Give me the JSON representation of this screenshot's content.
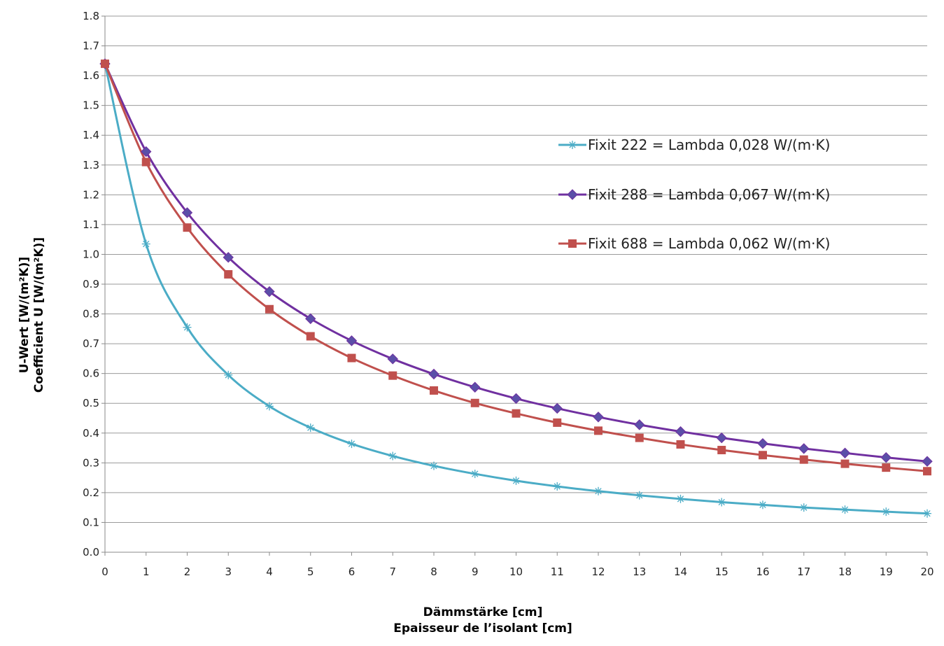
{
  "chart_data": {
    "type": "line",
    "xlabel": [
      "Dämmstärke [cm]",
      "Epaisseur de l’isolant [cm]"
    ],
    "ylabel": [
      "U-Wert [W/(m²K)]",
      "Coefficient U [W/(m²K)]"
    ],
    "xlim": [
      0,
      20
    ],
    "ylim": [
      0,
      1.8
    ],
    "x_ticks": [
      "0",
      "1",
      "2",
      "3",
      "4",
      "5",
      "6",
      "7",
      "8",
      "9",
      "10",
      "11",
      "12",
      "13",
      "14",
      "15",
      "16",
      "17",
      "18",
      "19",
      "20"
    ],
    "y_ticks": [
      "0.0",
      "0.1",
      "0.2",
      "0.3",
      "0.4",
      "0.5",
      "0.6",
      "0.7",
      "0.8",
      "0.9",
      "1.0",
      "1.1",
      "1.2",
      "1.3",
      "1.4",
      "1.5",
      "1.6",
      "1.7",
      "1.8"
    ],
    "grid": "horizontal",
    "legend_position": "right",
    "x": [
      0,
      1,
      2,
      3,
      4,
      5,
      6,
      7,
      8,
      9,
      10,
      11,
      12,
      13,
      14,
      15,
      16,
      17,
      18,
      19,
      20
    ],
    "series": [
      {
        "name": "Fixit 222 = Lambda 0,028 W/(m·K)",
        "color": "#4bacc6",
        "marker": "asterisk",
        "values": [
          1.64,
          1.035,
          0.755,
          0.595,
          0.49,
          0.418,
          0.364,
          0.323,
          0.29,
          0.263,
          0.24,
          0.221,
          0.205,
          0.191,
          0.179,
          0.168,
          0.159,
          0.15,
          0.143,
          0.136,
          0.13
        ]
      },
      {
        "name": "Fixit 288 = Lambda 0,067 W/(m·K)",
        "color": "#7030a0",
        "marker_color": "#5b4fa8",
        "marker": "diamond",
        "values": [
          1.64,
          1.345,
          1.14,
          0.99,
          0.875,
          0.784,
          0.71,
          0.649,
          0.598,
          0.554,
          0.516,
          0.483,
          0.454,
          0.428,
          0.405,
          0.384,
          0.365,
          0.348,
          0.333,
          0.318,
          0.305
        ]
      },
      {
        "name": "Fixit 688 = Lambda 0,062 W/(m·K)",
        "color": "#c0504d",
        "marker": "square",
        "values": [
          1.64,
          1.31,
          1.09,
          0.933,
          0.816,
          0.725,
          0.652,
          0.593,
          0.543,
          0.501,
          0.466,
          0.435,
          0.408,
          0.384,
          0.362,
          0.343,
          0.326,
          0.311,
          0.297,
          0.284,
          0.272
        ]
      }
    ]
  }
}
